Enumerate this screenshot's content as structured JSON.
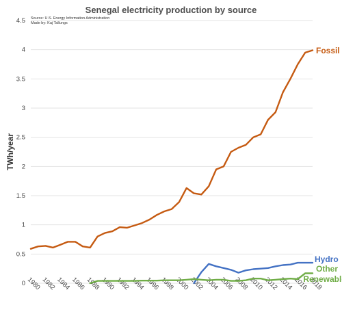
{
  "chart_data": {
    "type": "line",
    "title": "Senegal electricity production by source",
    "source_lines": [
      "Source: U.S. Energy Information Administration",
      "Made by: Kaj Tallungs"
    ],
    "ylabel": "TWh/year",
    "xlabel": "",
    "ylim": [
      0,
      4.5
    ],
    "yticks": [
      "0",
      "0.5",
      "1",
      "1.5",
      "2",
      "2.5",
      "3",
      "3.5",
      "4",
      "4.5"
    ],
    "xticks": [
      "1980",
      "1982",
      "1984",
      "1986",
      "1988",
      "1990",
      "1992",
      "1994",
      "1996",
      "1998",
      "2000",
      "2002",
      "2004",
      "2006",
      "2008",
      "2010",
      "2012",
      "2014",
      "2016",
      "2018"
    ],
    "grid": true,
    "legend": "labels at line ends",
    "series": [
      {
        "name": "Fossil",
        "color": "#c55a11",
        "x": [
          1980,
          1981,
          1982,
          1983,
          1984,
          1985,
          1986,
          1987,
          1988,
          1989,
          1990,
          1991,
          1992,
          1993,
          1994,
          1995,
          1996,
          1997,
          1998,
          1999,
          2000,
          2001,
          2002,
          2003,
          2004,
          2005,
          2006,
          2007,
          2008,
          2009,
          2010,
          2011,
          2012,
          2013,
          2014,
          2015,
          2016,
          2017,
          2018
        ],
        "values": [
          0.59,
          0.63,
          0.64,
          0.61,
          0.66,
          0.71,
          0.71,
          0.63,
          0.61,
          0.8,
          0.86,
          0.89,
          0.96,
          0.95,
          0.99,
          1.03,
          1.09,
          1.17,
          1.23,
          1.27,
          1.39,
          1.63,
          1.54,
          1.52,
          1.66,
          1.95,
          2.0,
          2.25,
          2.32,
          2.37,
          2.5,
          2.55,
          2.8,
          2.93,
          3.27,
          3.5,
          3.75,
          3.95,
          3.99
        ]
      },
      {
        "name": "Hydro",
        "color": "#4472c4",
        "x": [
          2002,
          2003,
          2004,
          2005,
          2006,
          2007,
          2008,
          2009,
          2010,
          2011,
          2012,
          2013,
          2014,
          2015,
          2016,
          2017,
          2018
        ],
        "values": [
          0.0,
          0.19,
          0.33,
          0.29,
          0.26,
          0.23,
          0.18,
          0.22,
          0.24,
          0.25,
          0.26,
          0.29,
          0.31,
          0.32,
          0.35,
          0.35,
          0.35
        ]
      },
      {
        "name": "Other Renewables",
        "color": "#70ad47",
        "label_lines": [
          "Other",
          "Renewables"
        ],
        "x": [
          1988,
          1989,
          1990,
          1991,
          1992,
          1993,
          1994,
          1995,
          1996,
          1997,
          1998,
          1999,
          2000,
          2001,
          2002,
          2003,
          2004,
          2005,
          2006,
          2007,
          2008,
          2009,
          2010,
          2011,
          2012,
          2013,
          2014,
          2015,
          2016,
          2017,
          2018
        ],
        "values": [
          0.0,
          0.04,
          0.04,
          0.04,
          0.04,
          0.04,
          0.04,
          0.045,
          0.045,
          0.045,
          0.05,
          0.05,
          0.05,
          0.06,
          0.07,
          0.06,
          0.05,
          0.06,
          0.06,
          0.04,
          0.04,
          0.05,
          0.08,
          0.08,
          0.05,
          0.06,
          0.07,
          0.08,
          0.07,
          0.17,
          0.17
        ]
      }
    ]
  }
}
